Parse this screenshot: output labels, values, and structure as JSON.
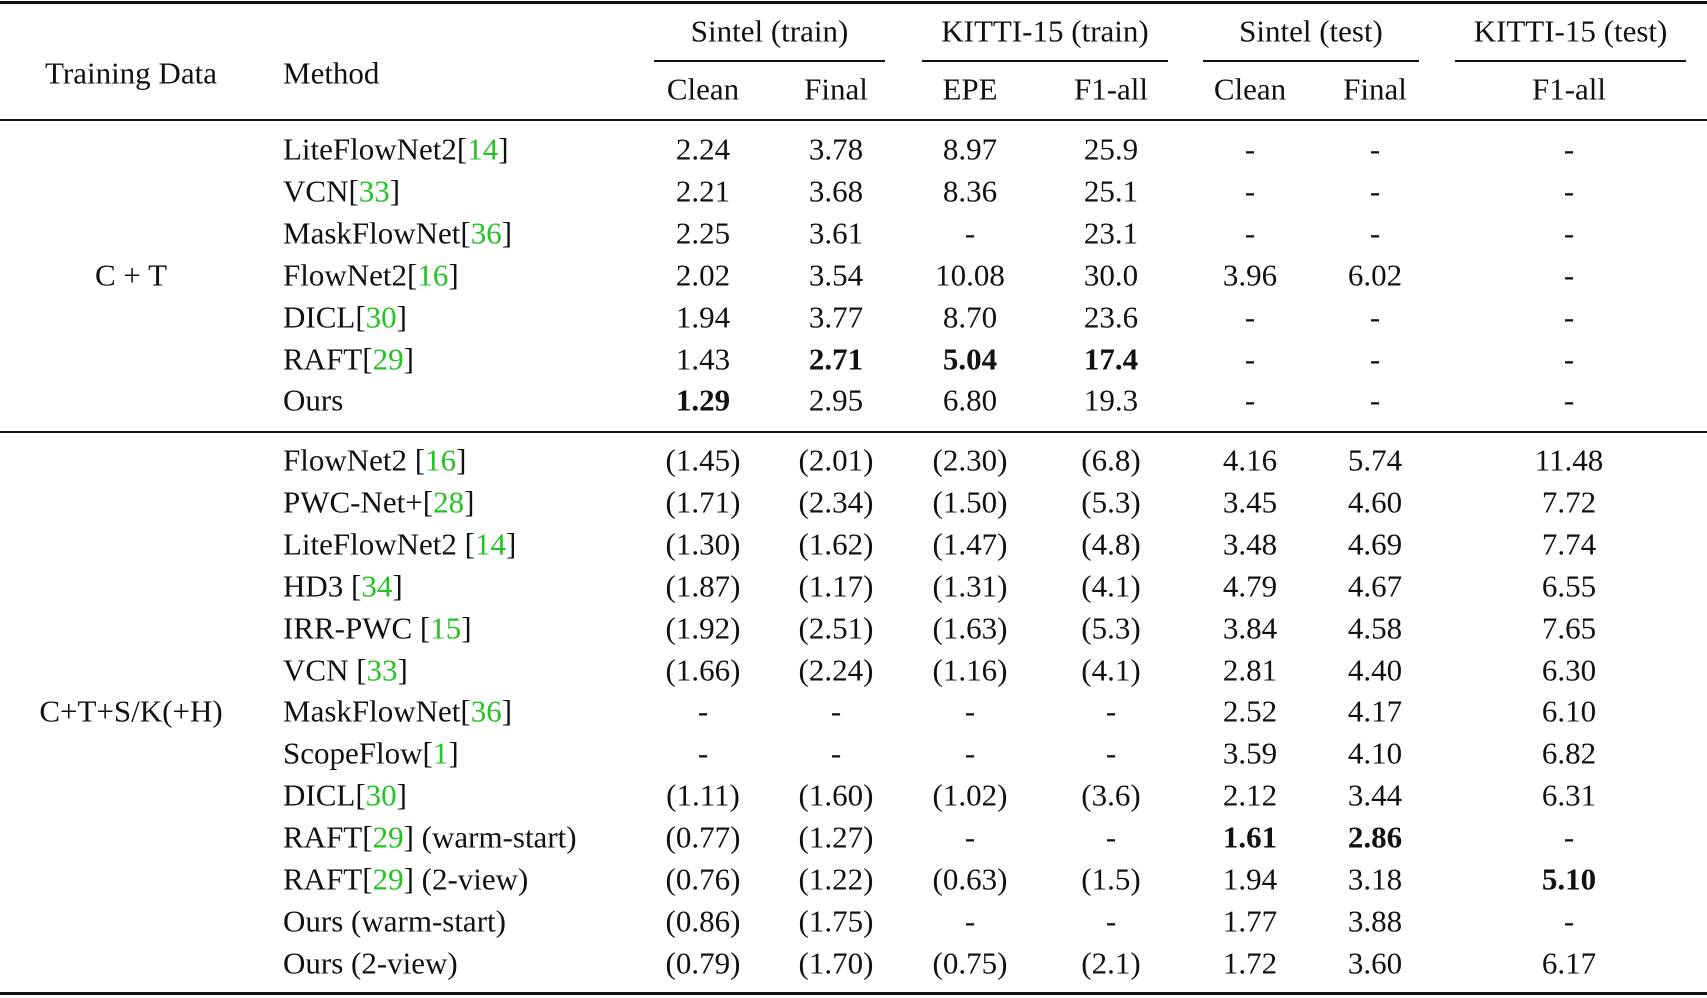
{
  "table": {
    "header": {
      "training_data": "Training Data",
      "method": "Method",
      "groups": [
        "Sintel (train)",
        "KITTI-15 (train)",
        "Sintel (test)",
        "KITTI-15 (test)"
      ],
      "columns": [
        "Clean",
        "Final",
        "EPE",
        "F1-all",
        "Clean",
        "Final",
        "F1-all"
      ]
    },
    "sections": [
      {
        "label": "C + T",
        "rows": [
          {
            "method": {
              "pre": "LiteFlowNet2[",
              "ref": "14",
              "post": "]"
            },
            "cells": [
              "2.24",
              "3.78",
              "8.97",
              "25.9",
              "-",
              "-",
              "-"
            ],
            "bold": []
          },
          {
            "method": {
              "pre": "VCN[",
              "ref": "33",
              "post": "]"
            },
            "cells": [
              "2.21",
              "3.68",
              "8.36",
              "25.1",
              "-",
              "-",
              "-"
            ],
            "bold": []
          },
          {
            "method": {
              "pre": "MaskFlowNet[",
              "ref": "36",
              "post": "]"
            },
            "cells": [
              "2.25",
              "3.61",
              "-",
              "23.1",
              "-",
              "-",
              "-"
            ],
            "bold": []
          },
          {
            "method": {
              "pre": "FlowNet2[",
              "ref": "16",
              "post": "]"
            },
            "cells": [
              "2.02",
              "3.54",
              "10.08",
              "30.0",
              "3.96",
              "6.02",
              "-"
            ],
            "bold": []
          },
          {
            "method": {
              "pre": "DICL[",
              "ref": "30",
              "post": "]"
            },
            "cells": [
              "1.94",
              "3.77",
              "8.70",
              "23.6",
              "-",
              "-",
              "-"
            ],
            "bold": []
          },
          {
            "method": {
              "pre": "RAFT[",
              "ref": "29",
              "post": "]"
            },
            "cells": [
              "1.43",
              "2.71",
              "5.04",
              "17.4",
              "-",
              "-",
              "-"
            ],
            "bold": [
              1,
              2,
              3
            ]
          },
          {
            "method": {
              "pre": "Ours"
            },
            "cells": [
              "1.29",
              "2.95",
              "6.80",
              "19.3",
              "-",
              "-",
              "-"
            ],
            "bold": [
              0
            ]
          }
        ]
      },
      {
        "label": "C+T+S/K(+H)",
        "rows": [
          {
            "method": {
              "pre": "FlowNet2 [",
              "ref": "16",
              "post": "]"
            },
            "cells": [
              "(1.45)",
              "(2.01)",
              "(2.30)",
              "(6.8)",
              "4.16",
              "5.74",
              "11.48"
            ],
            "bold": []
          },
          {
            "method": {
              "pre": "PWC-Net+[",
              "ref": "28",
              "post": "]"
            },
            "cells": [
              "(1.71)",
              "(2.34)",
              "(1.50)",
              "(5.3)",
              "3.45",
              "4.60",
              "7.72"
            ],
            "bold": []
          },
          {
            "method": {
              "pre": "LiteFlowNet2 [",
              "ref": "14",
              "post": "]"
            },
            "cells": [
              "(1.30)",
              "(1.62)",
              "(1.47)",
              "(4.8)",
              "3.48",
              "4.69",
              "7.74"
            ],
            "bold": []
          },
          {
            "method": {
              "pre": "HD3 [",
              "ref": "34",
              "post": "]"
            },
            "cells": [
              "(1.87)",
              "(1.17)",
              "(1.31)",
              "(4.1)",
              "4.79",
              "4.67",
              "6.55"
            ],
            "bold": []
          },
          {
            "method": {
              "pre": "IRR-PWC [",
              "ref": "15",
              "post": "]"
            },
            "cells": [
              "(1.92)",
              "(2.51)",
              "(1.63)",
              "(5.3)",
              "3.84",
              "4.58",
              "7.65"
            ],
            "bold": []
          },
          {
            "method": {
              "pre": "VCN [",
              "ref": "33",
              "post": "]"
            },
            "cells": [
              "(1.66)",
              "(2.24)",
              "(1.16)",
              "(4.1)",
              "2.81",
              "4.40",
              "6.30"
            ],
            "bold": []
          },
          {
            "method": {
              "pre": "MaskFlowNet[",
              "ref": "36",
              "post": "]"
            },
            "cells": [
              "-",
              "-",
              "-",
              "-",
              "2.52",
              "4.17",
              "6.10"
            ],
            "bold": []
          },
          {
            "method": {
              "pre": "ScopeFlow[",
              "ref": "1",
              "post": "]"
            },
            "cells": [
              "-",
              "-",
              "-",
              "-",
              "3.59",
              "4.10",
              "6.82"
            ],
            "bold": []
          },
          {
            "method": {
              "pre": "DICL[",
              "ref": "30",
              "post": "]"
            },
            "cells": [
              "(1.11)",
              "(1.60)",
              "(1.02)",
              "(3.6)",
              "2.12",
              "3.44",
              "6.31"
            ],
            "bold": []
          },
          {
            "method": {
              "pre": "RAFT[",
              "ref": "29",
              "post": "] (warm-start)"
            },
            "cells": [
              "(0.77)",
              "(1.27)",
              "-",
              "-",
              "1.61",
              "2.86",
              "-"
            ],
            "bold": [
              4,
              5
            ]
          },
          {
            "method": {
              "pre": "RAFT[",
              "ref": "29",
              "post": "] (2-view)"
            },
            "cells": [
              "(0.76)",
              "(1.22)",
              "(0.63)",
              "(1.5)",
              "1.94",
              "3.18",
              "5.10"
            ],
            "bold": [
              6
            ]
          },
          {
            "method": {
              "pre": "Ours (warm-start)"
            },
            "cells": [
              "(0.86)",
              "(1.75)",
              "-",
              "-",
              "1.77",
              "3.88",
              "-"
            ],
            "bold": []
          },
          {
            "method": {
              "pre": "Ours (2-view)"
            },
            "cells": [
              "(0.79)",
              "(1.70)",
              "(0.75)",
              "(2.1)",
              "1.72",
              "3.60",
              "6.17"
            ],
            "bold": []
          }
        ]
      }
    ]
  }
}
